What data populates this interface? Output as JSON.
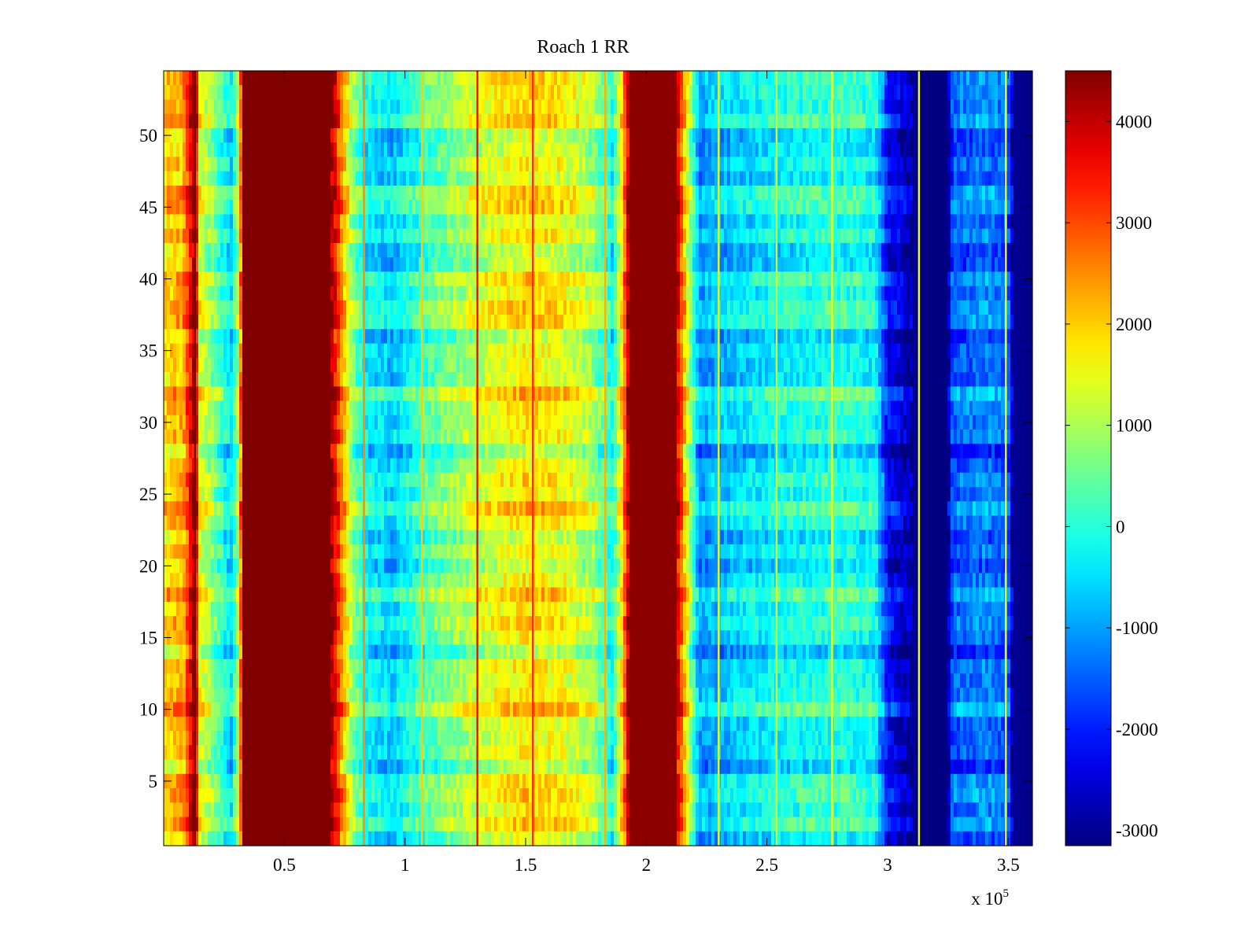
{
  "chart_data": {
    "type": "heatmap",
    "title": "Roach 1 RR",
    "xlabel": "",
    "ylabel": "",
    "x_exponent_label": {
      "prefix": "x 10",
      "exponent": "5"
    },
    "xlim": [
      0,
      3.6
    ],
    "ylim": [
      0.5,
      54.5
    ],
    "rows": 54,
    "x_ticks": [
      {
        "value": 0.5,
        "label": "0.5"
      },
      {
        "value": 1,
        "label": "1"
      },
      {
        "value": 1.5,
        "label": "1.5"
      },
      {
        "value": 2,
        "label": "2"
      },
      {
        "value": 2.5,
        "label": "2.5"
      },
      {
        "value": 3,
        "label": "3"
      },
      {
        "value": 3.5,
        "label": "3.5"
      }
    ],
    "y_ticks": [
      {
        "value": 5,
        "label": "5"
      },
      {
        "value": 10,
        "label": "10"
      },
      {
        "value": 15,
        "label": "15"
      },
      {
        "value": 20,
        "label": "20"
      },
      {
        "value": 25,
        "label": "25"
      },
      {
        "value": 30,
        "label": "30"
      },
      {
        "value": 35,
        "label": "35"
      },
      {
        "value": 40,
        "label": "40"
      },
      {
        "value": 45,
        "label": "45"
      },
      {
        "value": 50,
        "label": "50"
      }
    ],
    "colorbar": {
      "colormap": "jet",
      "range": [
        -3150,
        4500
      ],
      "ticks": [
        {
          "value": 4000,
          "label": "4000"
        },
        {
          "value": 3000,
          "label": "3000"
        },
        {
          "value": 2000,
          "label": "2000"
        },
        {
          "value": 1000,
          "label": "1000"
        },
        {
          "value": 0,
          "label": "0"
        },
        {
          "value": -1000,
          "label": "-1000"
        },
        {
          "value": -2000,
          "label": "-2000"
        },
        {
          "value": -3000,
          "label": "-3000"
        }
      ]
    },
    "column_profile": [
      {
        "x": 0.0,
        "value": 1900
      },
      {
        "x": 0.08,
        "value": 2200
      },
      {
        "x": 0.13,
        "value": 4500
      },
      {
        "x": 0.15,
        "value": 1500
      },
      {
        "x": 0.22,
        "value": 500
      },
      {
        "x": 0.28,
        "value": -500
      },
      {
        "x": 0.31,
        "value": 1000
      },
      {
        "x": 0.33,
        "value": 4500
      },
      {
        "x": 0.5,
        "value": 4500
      },
      {
        "x": 0.69,
        "value": 4500
      },
      {
        "x": 0.74,
        "value": 2500
      },
      {
        "x": 0.78,
        "value": 900
      },
      {
        "x": 0.84,
        "value": -200
      },
      {
        "x": 0.95,
        "value": -600
      },
      {
        "x": 1.08,
        "value": 300
      },
      {
        "x": 1.2,
        "value": 800
      },
      {
        "x": 1.35,
        "value": 1400
      },
      {
        "x": 1.5,
        "value": 1800
      },
      {
        "x": 1.65,
        "value": 1600
      },
      {
        "x": 1.78,
        "value": 1000
      },
      {
        "x": 1.86,
        "value": -200
      },
      {
        "x": 1.9,
        "value": 1800
      },
      {
        "x": 1.93,
        "value": 4400
      },
      {
        "x": 2.12,
        "value": 4400
      },
      {
        "x": 2.17,
        "value": 1500
      },
      {
        "x": 2.22,
        "value": -1000
      },
      {
        "x": 2.35,
        "value": -600
      },
      {
        "x": 2.55,
        "value": -200
      },
      {
        "x": 2.8,
        "value": 0
      },
      {
        "x": 2.95,
        "value": -200
      },
      {
        "x": 3.0,
        "value": -2100
      },
      {
        "x": 3.07,
        "value": -2600
      },
      {
        "x": 3.13,
        "value": -3150
      },
      {
        "x": 3.25,
        "value": -3150
      },
      {
        "x": 3.27,
        "value": -1500
      },
      {
        "x": 3.4,
        "value": -1200
      },
      {
        "x": 3.5,
        "value": -1500
      },
      {
        "x": 3.52,
        "value": -3000
      },
      {
        "x": 3.6,
        "value": -3100
      }
    ],
    "vertical_streaks": [
      {
        "x": 0.13,
        "value": 4500
      },
      {
        "x": 0.83,
        "value": 2500
      },
      {
        "x": 1.07,
        "value": 2000
      },
      {
        "x": 1.3,
        "value": 3500
      },
      {
        "x": 1.53,
        "value": 3200
      },
      {
        "x": 1.83,
        "value": 2200
      },
      {
        "x": 2.3,
        "value": 1500
      },
      {
        "x": 2.54,
        "value": 1200
      },
      {
        "x": 2.77,
        "value": 1500
      },
      {
        "x": 3.13,
        "value": 1500
      },
      {
        "x": 3.49,
        "value": 1500
      }
    ]
  }
}
